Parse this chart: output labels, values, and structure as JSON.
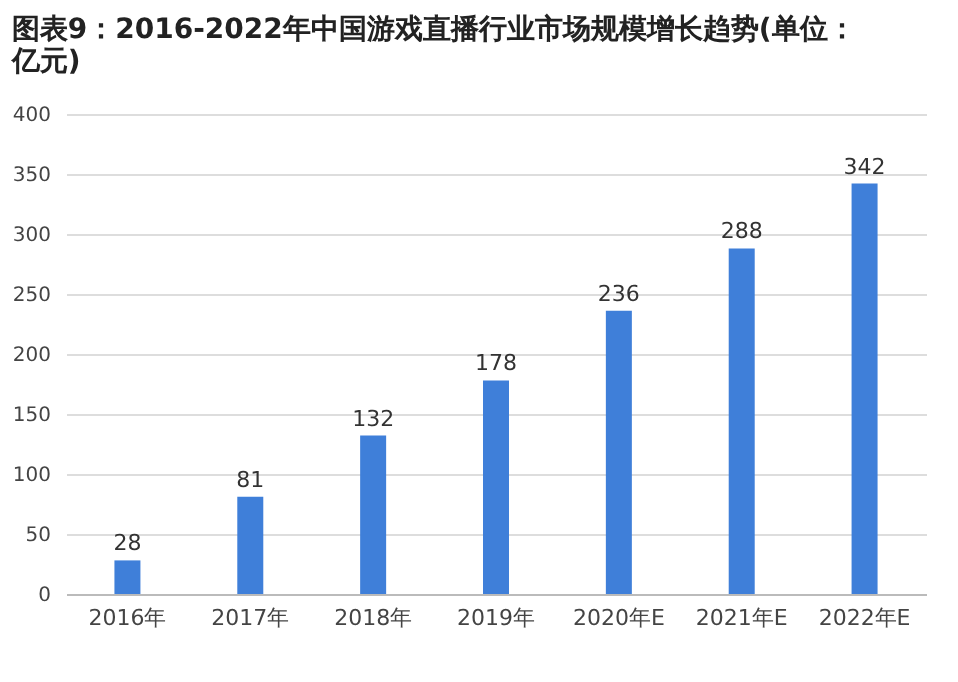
{
  "chart_data": {
    "type": "bar",
    "title": "图表9：2016-2022年中国游戏直播行业市场规模增长趋势(单位：亿元)",
    "categories": [
      "2016年",
      "2017年",
      "2018年",
      "2019年",
      "2020年E",
      "2021年E",
      "2022年E"
    ],
    "values": [
      28,
      81,
      132,
      178,
      236,
      288,
      342
    ],
    "color": "#3f7fd9",
    "ylim": [
      0,
      400
    ],
    "yticks": [
      0,
      50,
      100,
      150,
      200,
      250,
      300,
      350,
      400
    ],
    "grid": "y",
    "data_labels": true
  }
}
